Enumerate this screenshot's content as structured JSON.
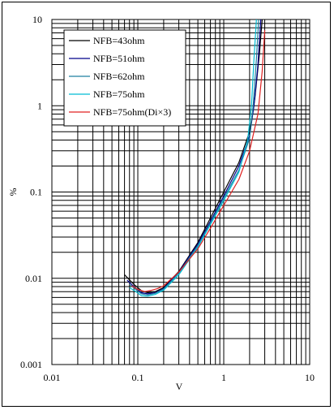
{
  "chart_data": {
    "type": "line",
    "title": "",
    "xlabel": "V",
    "ylabel": "%",
    "xscale": "log",
    "yscale": "log",
    "xlim": [
      0.01,
      10
    ],
    "ylim": [
      0.001,
      10
    ],
    "grid": true,
    "legend_position": "top-left",
    "x_tick_labels": [
      "0.01",
      "0.1",
      "1",
      "10"
    ],
    "y_tick_labels": [
      "0.001",
      "0.01",
      "0.1",
      "1",
      "10"
    ],
    "series": [
      {
        "name": "NFB=43ohm",
        "color": "#000000",
        "x": [
          0.07,
          0.09,
          0.11,
          0.13,
          0.16,
          0.2,
          0.3,
          0.5,
          0.7,
          1.0,
          1.5,
          2.0,
          2.3,
          2.6,
          2.8
        ],
        "y": [
          0.011,
          0.0085,
          0.0072,
          0.0068,
          0.007,
          0.0078,
          0.012,
          0.026,
          0.05,
          0.1,
          0.22,
          0.5,
          1.2,
          4.0,
          10.0
        ]
      },
      {
        "name": "NFB=51ohm",
        "color": "#00008b",
        "x": [
          0.075,
          0.09,
          0.11,
          0.13,
          0.16,
          0.2,
          0.3,
          0.5,
          0.7,
          1.0,
          1.5,
          2.0,
          2.25,
          2.5,
          2.7
        ],
        "y": [
          0.0095,
          0.008,
          0.0068,
          0.0066,
          0.0068,
          0.0076,
          0.0118,
          0.025,
          0.046,
          0.09,
          0.2,
          0.45,
          1.0,
          3.0,
          10.0
        ]
      },
      {
        "name": "NFB=62ohm",
        "color": "#1f7fa0",
        "x": [
          0.08,
          0.095,
          0.11,
          0.13,
          0.16,
          0.2,
          0.3,
          0.5,
          0.7,
          1.0,
          1.5,
          2.0,
          2.2,
          2.4,
          2.55
        ],
        "y": [
          0.0085,
          0.0074,
          0.0066,
          0.0064,
          0.0067,
          0.0075,
          0.0115,
          0.024,
          0.044,
          0.085,
          0.18,
          0.42,
          1.0,
          3.5,
          10.0
        ]
      },
      {
        "name": "NFB=75ohm",
        "color": "#00bcd4",
        "x": [
          0.08,
          0.095,
          0.11,
          0.13,
          0.16,
          0.2,
          0.3,
          0.5,
          0.7,
          1.0,
          1.5,
          1.9,
          2.1,
          2.25,
          2.4
        ],
        "y": [
          0.0078,
          0.007,
          0.0063,
          0.0062,
          0.0065,
          0.0073,
          0.011,
          0.023,
          0.042,
          0.08,
          0.17,
          0.4,
          1.0,
          3.5,
          10.0
        ]
      },
      {
        "name": "NFB=75ohm(Di×3)",
        "color": "#e02020",
        "x": [
          0.085,
          0.1,
          0.12,
          0.14,
          0.17,
          0.2,
          0.3,
          0.5,
          0.7,
          1.0,
          1.5,
          2.0,
          2.5,
          2.8,
          3.0
        ],
        "y": [
          0.0082,
          0.0074,
          0.007,
          0.0072,
          0.0076,
          0.0082,
          0.0118,
          0.022,
          0.038,
          0.07,
          0.14,
          0.3,
          0.8,
          2.5,
          7.5
        ]
      }
    ]
  }
}
